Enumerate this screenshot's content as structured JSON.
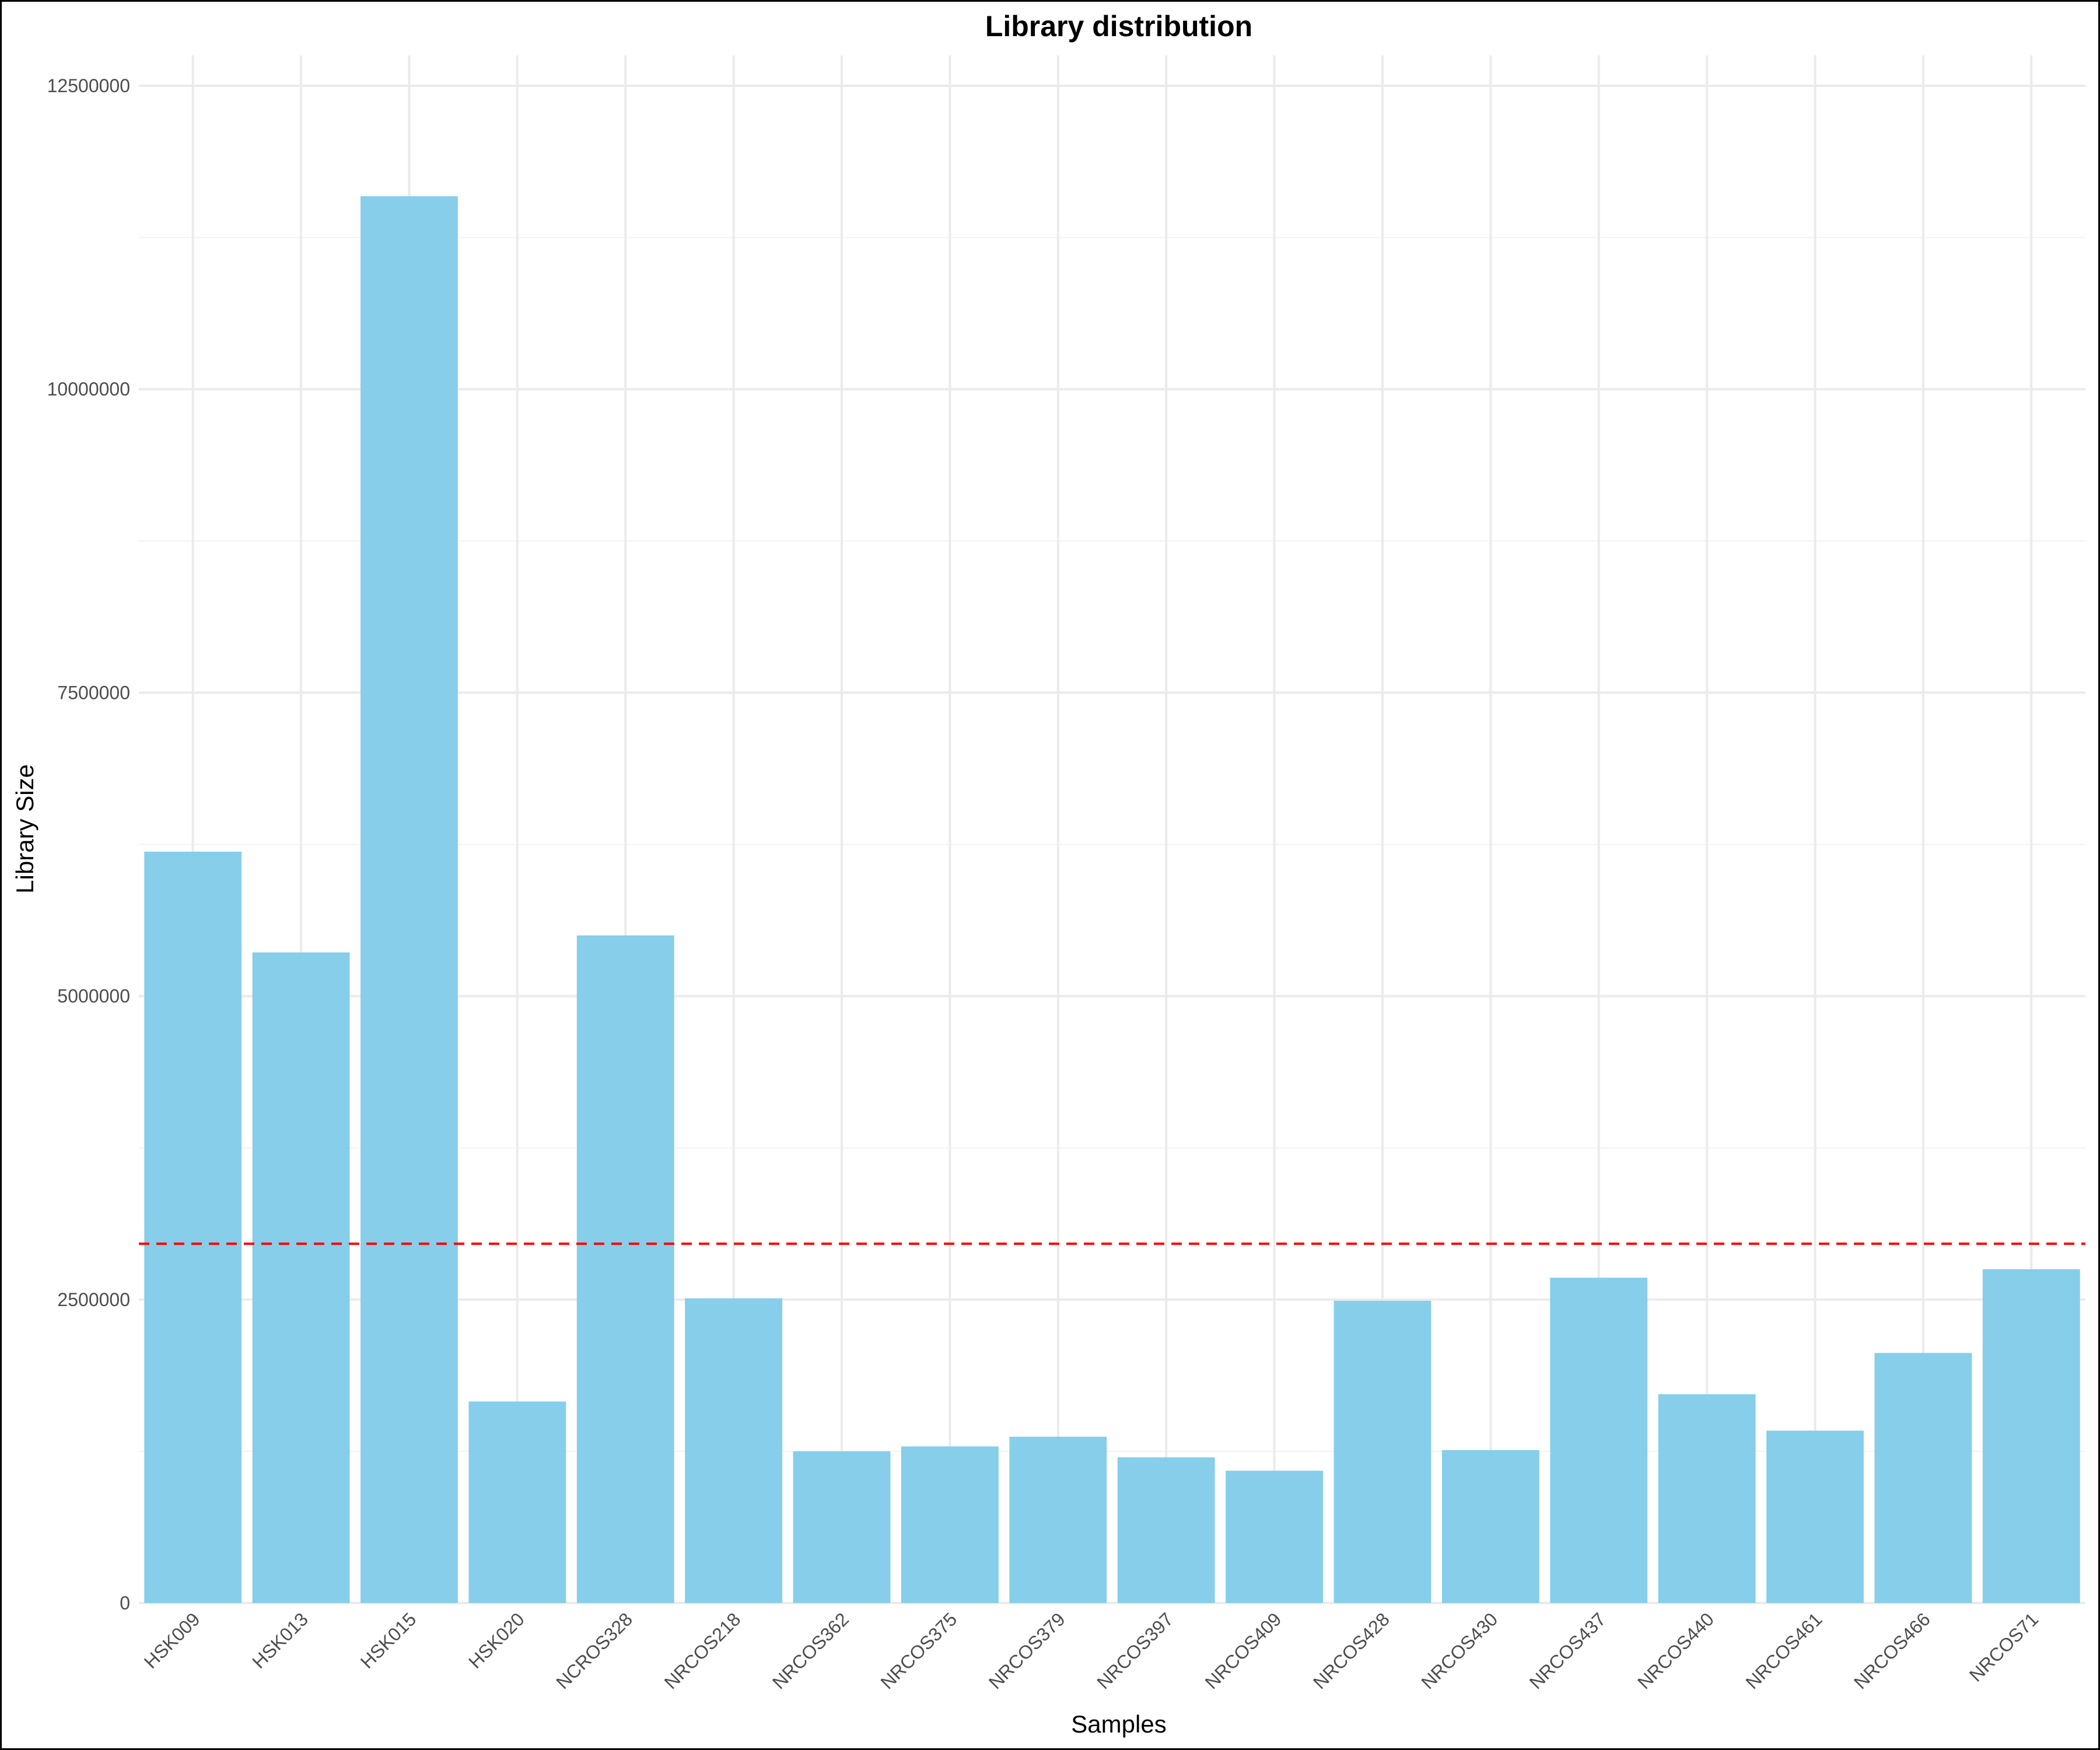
{
  "chart_data": {
    "type": "bar",
    "title": "Library distribution",
    "xlabel": "Samples",
    "ylabel": "Library Size",
    "categories": [
      "HSK009",
      "HSK013",
      "HSK015",
      "HSK020",
      "NCROS328",
      "NRCOS218",
      "NRCOS362",
      "NRCOS375",
      "NRCOS379",
      "NRCOS397",
      "NRCOS409",
      "NRCOS428",
      "NRCOS430",
      "NRCOS437",
      "NRCOS440",
      "NRCOS461",
      "NRCOS466",
      "NRCOS71"
    ],
    "values": [
      6190000,
      5360000,
      11590000,
      1660000,
      5500000,
      2510000,
      1250000,
      1290000,
      1370000,
      1200000,
      1090000,
      2490000,
      1260000,
      2680000,
      1720000,
      1420000,
      2060000,
      2750000
    ],
    "ylim": [
      0,
      12750000
    ],
    "yticks": [
      0,
      2500000,
      5000000,
      7500000,
      10000000,
      12500000
    ],
    "ytick_labels": [
      "0",
      "2500000",
      "5000000",
      "7500000",
      "10000000",
      "12500000"
    ],
    "reference_line": {
      "value": 2960000,
      "style": "dashed",
      "color": "#ff0000"
    },
    "bar_color": "#87ceea",
    "grid": true,
    "legend": "none"
  }
}
